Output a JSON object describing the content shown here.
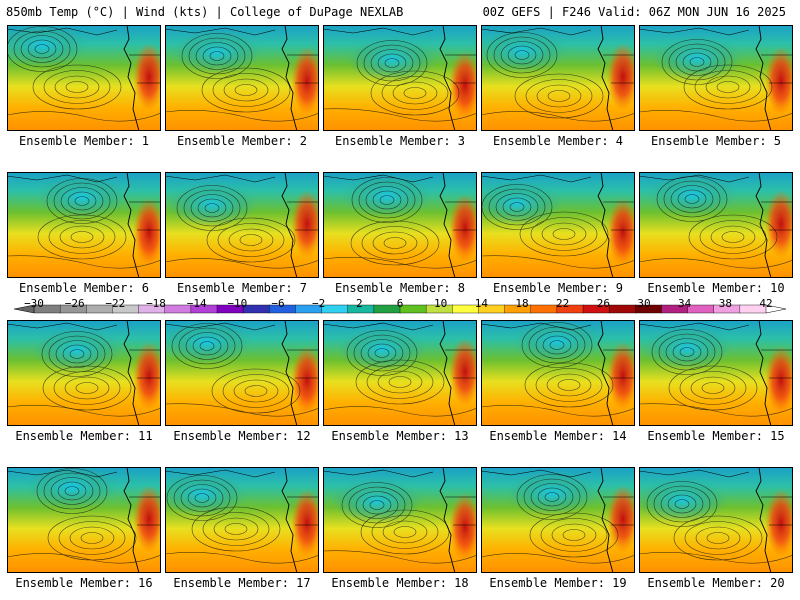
{
  "header": {
    "left_title": "850mb Temp (°C) | Wind (kts) | College of DuPage NEXLAB",
    "right_title": "00Z GEFS | F246 Valid: 06Z MON JUN 16 2025"
  },
  "panels": [
    {
      "label": "Ensemble Member: 1"
    },
    {
      "label": "Ensemble Member: 2"
    },
    {
      "label": "Ensemble Member: 3"
    },
    {
      "label": "Ensemble Member: 4"
    },
    {
      "label": "Ensemble Member: 5"
    },
    {
      "label": "Ensemble Member: 6"
    },
    {
      "label": "Ensemble Member: 7"
    },
    {
      "label": "Ensemble Member: 8"
    },
    {
      "label": "Ensemble Member: 9"
    },
    {
      "label": "Ensemble Member: 10"
    },
    {
      "label": "Ensemble Member: 11"
    },
    {
      "label": "Ensemble Member: 12"
    },
    {
      "label": "Ensemble Member: 13"
    },
    {
      "label": "Ensemble Member: 14"
    },
    {
      "label": "Ensemble Member: 15"
    },
    {
      "label": "Ensemble Member: 16"
    },
    {
      "label": "Ensemble Member: 17"
    },
    {
      "label": "Ensemble Member: 18"
    },
    {
      "label": "Ensemble Member: 19"
    },
    {
      "label": "Ensemble Member: 20"
    }
  ],
  "colorbar": {
    "tick_labels": [
      "−30",
      "−26",
      "−22",
      "−18",
      "−14",
      "−10",
      "−6",
      "−2",
      "2",
      "6",
      "10",
      "14",
      "18",
      "22",
      "26",
      "30",
      "34",
      "38",
      "42"
    ],
    "colors": [
      "#7f7f7f",
      "#969696",
      "#adadad",
      "#c8c8c8",
      "#e0b0e8",
      "#d07ce0",
      "#b040d8",
      "#8000c0",
      "#3030b0",
      "#2060e0",
      "#2aa0f0",
      "#30d0f0",
      "#18b8a0",
      "#20a040",
      "#60c020",
      "#c0e040",
      "#ffff40",
      "#ffd020",
      "#ffa000",
      "#ff7000",
      "#f04010",
      "#d01010",
      "#a00808",
      "#700000",
      "#b02080",
      "#e060c0",
      "#f0a0e0",
      "#ffd0f0"
    ]
  }
}
